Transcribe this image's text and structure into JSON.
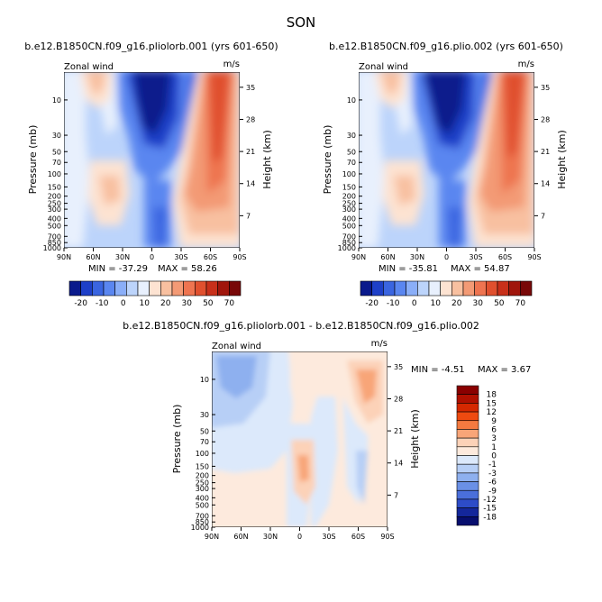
{
  "figure": {
    "season_title": "SON"
  },
  "chart_data": [
    {
      "type": "heatmap",
      "title": "b.e12.B1850CN.f09_g16.pliolorb.001 (yrs 601-650)",
      "field_label": "Zonal wind",
      "units": "m/s",
      "xlabel": "",
      "ylabel": "Pressure (mb)",
      "ylabel_right": "Height (km)",
      "x_ticks": [
        "90N",
        "60N",
        "30N",
        "0",
        "30S",
        "60S",
        "90S"
      ],
      "y_ticks": [
        "10",
        "30",
        "50",
        "70",
        "100",
        "150",
        "200",
        "250",
        "300",
        "400",
        "500",
        "700",
        "850",
        "1000"
      ],
      "y_ticks_right": [
        "35",
        "28",
        "21",
        "14",
        "7"
      ],
      "min_label": "MIN = -37.29",
      "max_label": "MAX = 58.26",
      "min": -37.29,
      "max": 58.26,
      "colorbar_labels": [
        "-20",
        "-10",
        "0",
        "10",
        "20",
        "30",
        "50",
        "70"
      ]
    },
    {
      "type": "heatmap",
      "title": "b.e12.B1850CN.f09_g16.plio.002 (yrs 601-650)",
      "field_label": "Zonal wind",
      "units": "m/s",
      "xlabel": "",
      "ylabel": "Pressure (mb)",
      "ylabel_right": "Height (km)",
      "x_ticks": [
        "90N",
        "60N",
        "30N",
        "0",
        "30S",
        "60S",
        "90S"
      ],
      "y_ticks": [
        "10",
        "30",
        "50",
        "70",
        "100",
        "150",
        "200",
        "250",
        "300",
        "400",
        "500",
        "700",
        "850",
        "1000"
      ],
      "y_ticks_right": [
        "35",
        "28",
        "21",
        "14",
        "7"
      ],
      "min_label": "MIN = -35.81",
      "max_label": "MAX = 54.87",
      "min": -35.81,
      "max": 54.87,
      "colorbar_labels": [
        "-20",
        "-10",
        "0",
        "10",
        "20",
        "30",
        "50",
        "70"
      ]
    },
    {
      "type": "heatmap",
      "title": "b.e12.B1850CN.f09_g16.pliolorb.001 - b.e12.B1850CN.f09_g16.plio.002",
      "field_label": "Zonal wind",
      "units": "m/s",
      "xlabel": "",
      "ylabel": "Pressure (mb)",
      "ylabel_right": "Height (km)",
      "x_ticks": [
        "90N",
        "60N",
        "30N",
        "0",
        "30S",
        "60S",
        "90S"
      ],
      "y_ticks": [
        "10",
        "30",
        "50",
        "70",
        "100",
        "150",
        "200",
        "250",
        "300",
        "400",
        "500",
        "700",
        "850",
        "1000"
      ],
      "y_ticks_right": [
        "35",
        "28",
        "21",
        "14",
        "7"
      ],
      "min_label": "MIN = -4.51",
      "max_label": "MAX = 3.67",
      "min": -4.51,
      "max": 3.67,
      "colorbar_labels": [
        "18",
        "15",
        "12",
        "9",
        "6",
        "3",
        "1",
        "0",
        "-1",
        "-3",
        "-6",
        "-9",
        "-12",
        "-15",
        "-18"
      ]
    }
  ],
  "colors": {
    "full_scale": [
      "#0a1a8c",
      "#1e40c8",
      "#3a65e0",
      "#5a86f0",
      "#8aaef8",
      "#bcd4fb",
      "#e8f0fd",
      "#fde3d2",
      "#f8c0a0",
      "#f39a75",
      "#ee7450",
      "#e0502e",
      "#c8301a",
      "#a0160c",
      "#780808"
    ],
    "diff_scale": [
      "#8a0000",
      "#b01000",
      "#d52800",
      "#ee4a10",
      "#f47a40",
      "#f8a578",
      "#fcd2b8",
      "#fdeadd",
      "#dce9fb",
      "#b7cff6",
      "#8eb0ef",
      "#6a90e6",
      "#4a6fdb",
      "#2d4cc8",
      "#14279b",
      "#070e6e"
    ]
  }
}
